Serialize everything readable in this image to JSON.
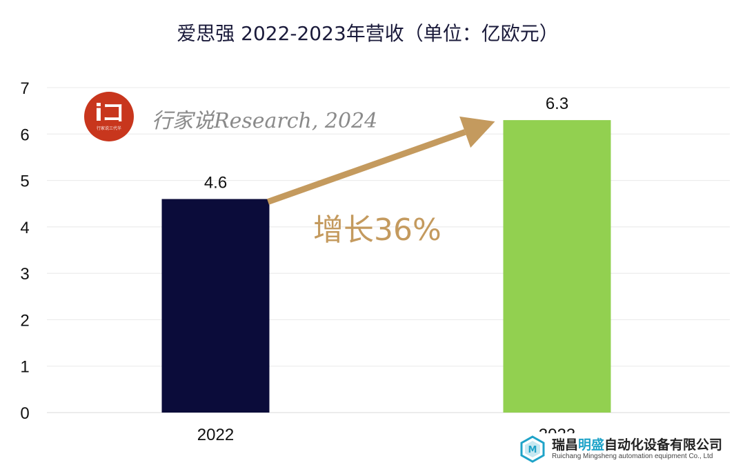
{
  "chart_data": {
    "type": "bar",
    "title": "爱思强 2022-2023年营收（单位：亿欧元）",
    "categories": [
      "2022",
      "2023"
    ],
    "values": [
      4.6,
      6.3
    ],
    "value_labels": [
      "4.6",
      "6.3"
    ],
    "bar_colors": [
      "#0b0c3a",
      "#92d050"
    ],
    "ylim": [
      0,
      7
    ],
    "yticks": [
      0,
      1,
      2,
      3,
      4,
      5,
      6,
      7
    ],
    "grid": true,
    "legend": "none",
    "annotation": "增长36%",
    "annotation_color": "#c49a5e"
  },
  "watermark": {
    "text": "行家说Research, 2024",
    "logo_glyph": "iコ",
    "logo_caption": "行家说三代半"
  },
  "company": {
    "name_part1": "瑞昌",
    "name_highlight": "明盛",
    "name_part2": "自动化设备有限公司",
    "name_en": "Ruichang Mingsheng automation equipment Co., Ltd"
  }
}
